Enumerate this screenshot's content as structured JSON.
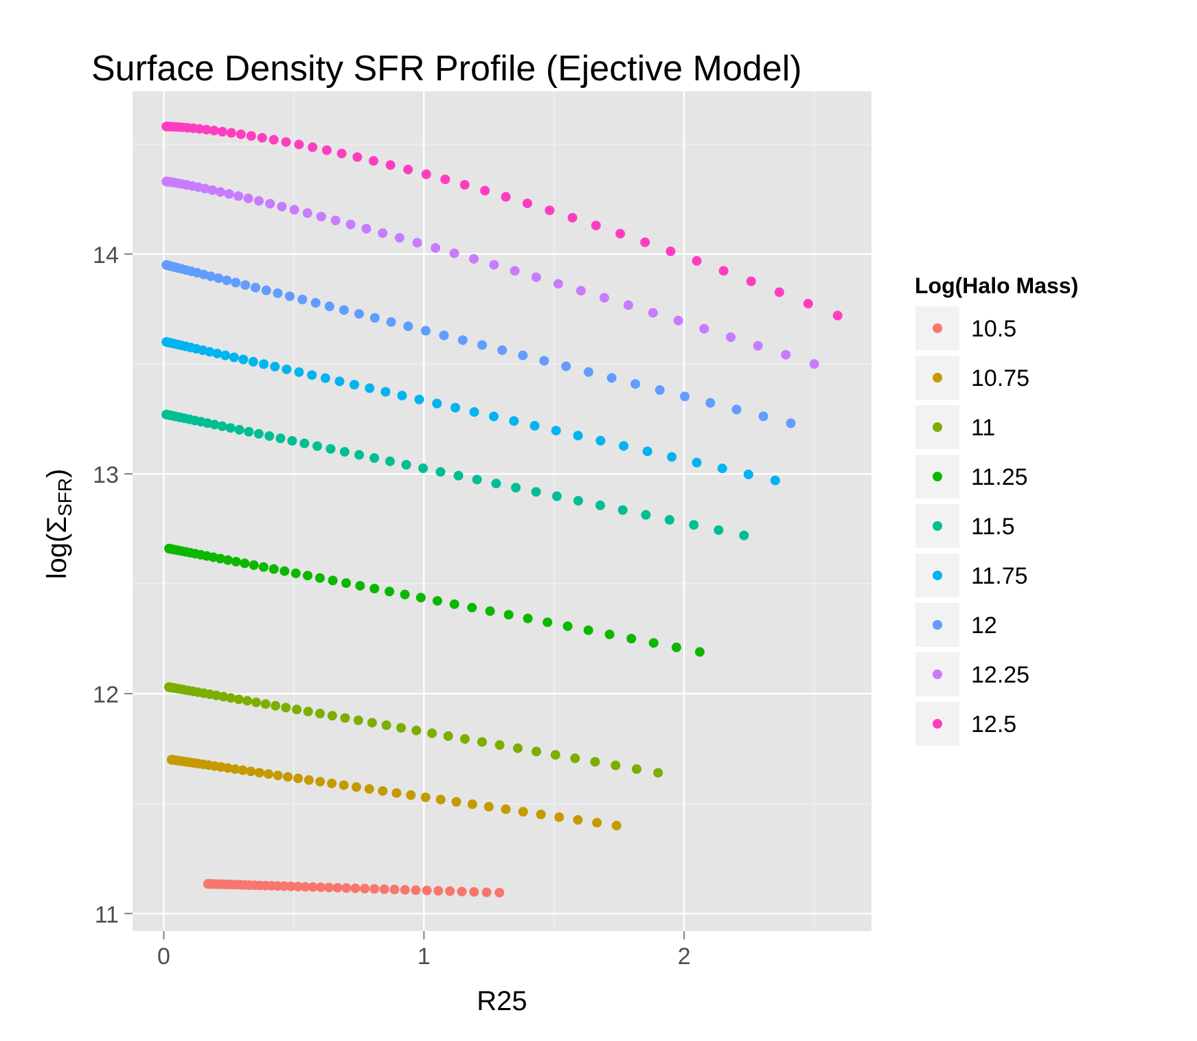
{
  "chart_data": {
    "type": "scatter",
    "title": "Surface Density SFR Profile (Ejective Model)",
    "xlabel": "R25",
    "ylabel": "log(ΣSFR)",
    "ylabel_parts": {
      "prefix": "log(",
      "symbol": "Σ",
      "subscript": "SFR",
      "suffix": ")"
    },
    "xlim": [
      -0.12,
      2.72
    ],
    "ylim": [
      10.92,
      14.74
    ],
    "x_ticks": [
      0,
      1,
      2
    ],
    "y_ticks": [
      11,
      12,
      13,
      14
    ],
    "grid": true,
    "legend_placement": "right",
    "legend_title": "Log(Halo Mass)",
    "panel_color": "#e5e5e5",
    "series": [
      {
        "name": "10.5",
        "color": "#F8766D",
        "x_start": 0.17,
        "x_end": 1.29,
        "y_start": 11.135,
        "y_end": 11.095,
        "curve": 1.0
      },
      {
        "name": "10.75",
        "color": "#C49A00",
        "x_start": 0.03,
        "x_end": 1.74,
        "y_start": 11.7,
        "y_end": 11.4,
        "curve": 1.0
      },
      {
        "name": "11",
        "color": "#7CAE00",
        "x_start": 0.02,
        "x_end": 1.9,
        "y_start": 12.03,
        "y_end": 11.64,
        "curve": 1.0
      },
      {
        "name": "11.25",
        "color": "#0CB702",
        "x_start": 0.02,
        "x_end": 2.06,
        "y_start": 12.66,
        "y_end": 12.19,
        "curve": 1.0
      },
      {
        "name": "11.5",
        "color": "#00BE93",
        "x_start": 0.01,
        "x_end": 2.23,
        "y_start": 13.27,
        "y_end": 12.72,
        "curve": 1.0
      },
      {
        "name": "11.75",
        "color": "#00B4EF",
        "x_start": 0.01,
        "x_end": 2.35,
        "y_start": 13.6,
        "y_end": 12.97,
        "curve": 1.0
      },
      {
        "name": "12",
        "color": "#619CFF",
        "x_start": 0.01,
        "x_end": 2.41,
        "y_start": 13.95,
        "y_end": 13.23,
        "curve": 1.0
      },
      {
        "name": "12.25",
        "color": "#C77CFF",
        "x_start": 0.01,
        "x_end": 2.5,
        "y_start": 14.33,
        "y_end": 13.5,
        "curve": 1.15
      },
      {
        "name": "12.5",
        "color": "#FF3DC1",
        "x_start": 0.01,
        "x_end": 2.59,
        "y_start": 14.58,
        "y_end": 13.72,
        "curve": 1.45
      }
    ]
  }
}
